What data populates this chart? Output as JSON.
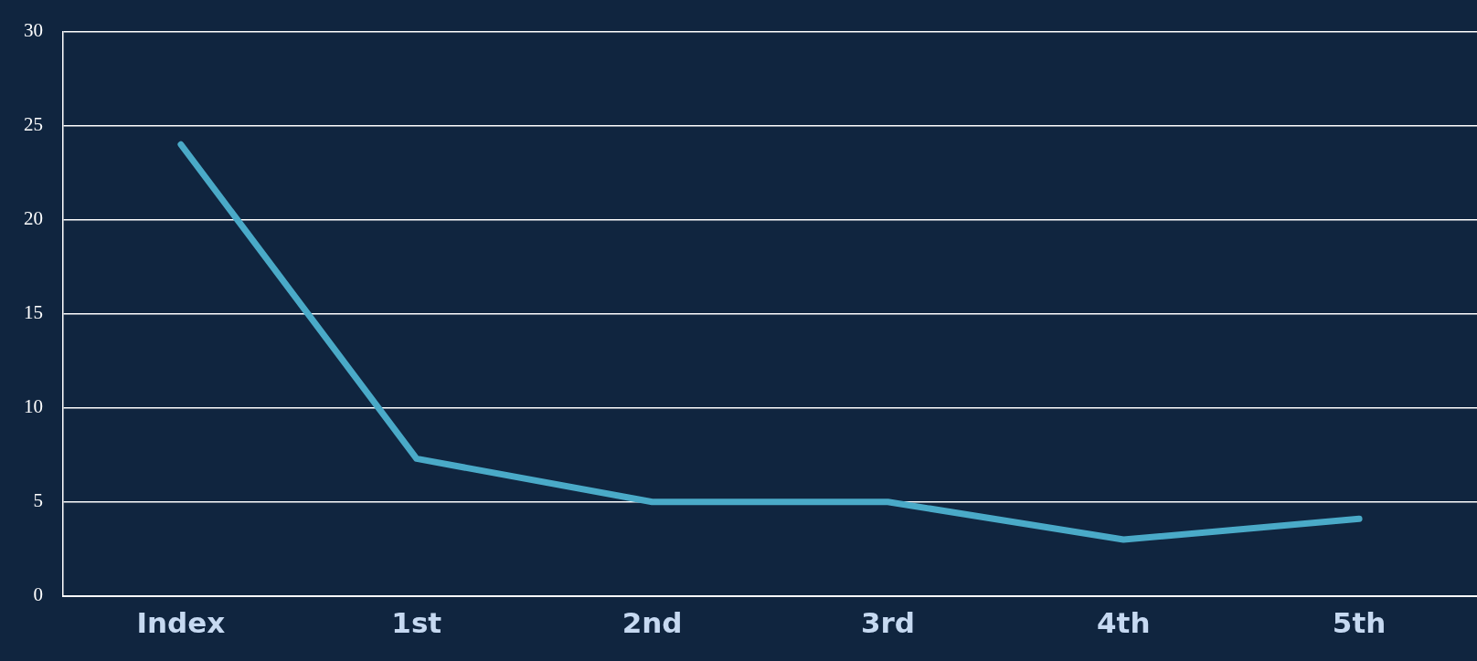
{
  "chart_data": {
    "type": "line",
    "categories": [
      "Index",
      "1st",
      "2nd",
      "3rd",
      "4th",
      "5th"
    ],
    "series": [
      {
        "color": "#4aaac8",
        "values": [
          24,
          7.3,
          5,
          5,
          3,
          4.1
        ]
      }
    ],
    "ylim": [
      0,
      30
    ],
    "yticks": [
      0,
      5,
      10,
      15,
      20,
      25,
      30
    ],
    "grid": "y",
    "legend": false,
    "marker": "none",
    "line_style": "solid"
  }
}
